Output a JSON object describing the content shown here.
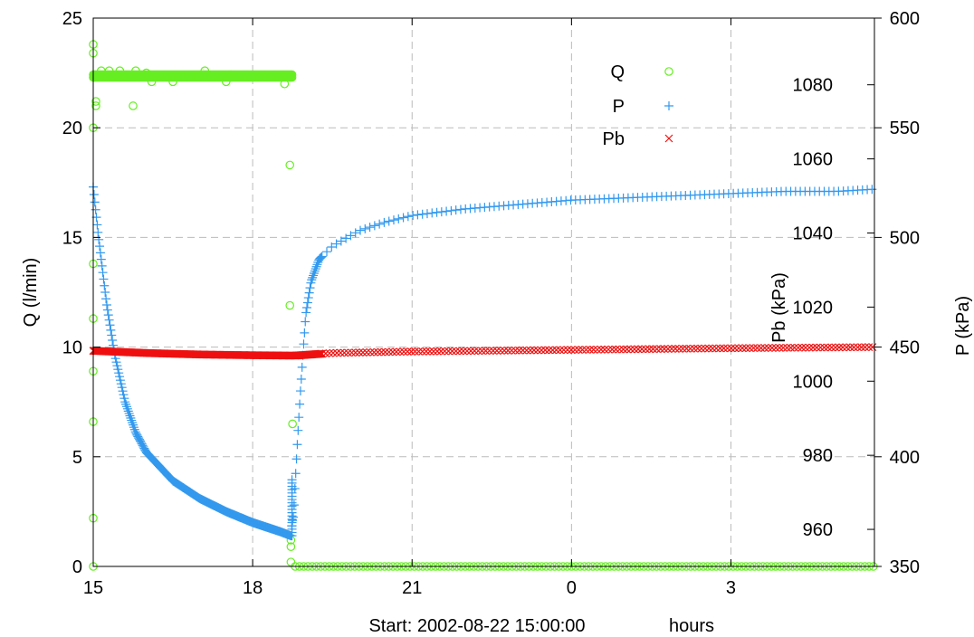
{
  "chart_data": {
    "type": "scatter",
    "xlabel": "hours",
    "x_note": "Start: 2002-08-22 15:00:00",
    "x_tick_labels": [
      "15",
      "18",
      "21",
      "0",
      "3"
    ],
    "x_tick_hours": [
      0,
      3,
      6,
      9,
      12
    ],
    "xlim_hours": [
      0,
      14.7
    ],
    "axes": {
      "left": {
        "label": "Q  (l/min)",
        "ylim": [
          0,
          25
        ],
        "ticks": [
          0,
          5,
          10,
          15,
          20,
          25
        ]
      },
      "right1": {
        "label": "Pb (kPa)",
        "ylim": [
          950,
          1098
        ],
        "ticks": [
          960,
          980,
          1000,
          1020,
          1040,
          1060,
          1080
        ]
      },
      "right2": {
        "label": "P  (kPa)",
        "ylim": [
          350,
          600
        ],
        "ticks": [
          350,
          400,
          450,
          500,
          550,
          600
        ]
      }
    },
    "grid": true,
    "legend_position": "top-right",
    "series": [
      {
        "name": "Q",
        "axis": "left",
        "marker": "circle",
        "color": "#66ee22",
        "segments": [
          {
            "from": 0.0,
            "to": 3.75,
            "value": 22.3
          },
          {
            "from": 3.8,
            "to": 14.7,
            "value": 0.0
          }
        ],
        "outliers": [
          [
            0.0,
            23.8
          ],
          [
            0.0,
            23.4
          ],
          [
            0.0,
            20.0
          ],
          [
            0.0,
            13.8
          ],
          [
            0.0,
            11.3
          ],
          [
            0.0,
            8.9
          ],
          [
            0.0,
            6.6
          ],
          [
            0.0,
            2.2
          ],
          [
            0.0,
            0.0
          ],
          [
            0.05,
            21.2
          ],
          [
            0.05,
            21.0
          ],
          [
            0.15,
            22.6
          ],
          [
            0.3,
            22.6
          ],
          [
            0.5,
            22.6
          ],
          [
            0.8,
            22.6
          ],
          [
            0.75,
            21.0
          ],
          [
            1.0,
            22.5
          ],
          [
            1.5,
            22.1
          ],
          [
            1.1,
            22.1
          ],
          [
            2.1,
            22.6
          ],
          [
            2.5,
            22.1
          ],
          [
            3.6,
            22.0
          ],
          [
            3.7,
            18.3
          ],
          [
            3.7,
            11.9
          ],
          [
            3.75,
            6.5
          ],
          [
            3.72,
            1.2
          ],
          [
            3.72,
            0.9
          ],
          [
            3.72,
            0.2
          ]
        ]
      },
      {
        "name": "P",
        "axis": "right2",
        "marker": "plus",
        "color": "#3399ee",
        "points": [
          [
            0.0,
            523
          ],
          [
            0.1,
            500
          ],
          [
            0.25,
            470
          ],
          [
            0.4,
            447
          ],
          [
            0.6,
            425
          ],
          [
            0.8,
            411
          ],
          [
            1.0,
            402
          ],
          [
            1.5,
            389
          ],
          [
            2.0,
            381
          ],
          [
            2.5,
            375
          ],
          [
            3.0,
            370
          ],
          [
            3.5,
            366
          ],
          [
            3.72,
            364
          ],
          [
            3.74,
            370
          ],
          [
            3.77,
            373
          ],
          [
            3.8,
            388
          ],
          [
            3.85,
            410
          ],
          [
            3.9,
            430
          ],
          [
            3.95,
            448
          ],
          [
            4.0,
            465
          ],
          [
            4.1,
            480
          ],
          [
            4.25,
            490
          ],
          [
            4.5,
            496
          ],
          [
            5.0,
            503
          ],
          [
            5.5,
            507
          ],
          [
            6.0,
            510
          ],
          [
            7.0,
            513
          ],
          [
            8.0,
            515
          ],
          [
            9.0,
            517
          ],
          [
            10.0,
            518
          ],
          [
            11.0,
            519
          ],
          [
            12.0,
            520
          ],
          [
            13.0,
            521
          ],
          [
            14.0,
            521
          ],
          [
            14.7,
            522
          ]
        ]
      },
      {
        "name": "Pb",
        "axis": "right1",
        "marker": "x",
        "color": "#ee1111",
        "points": [
          [
            0.0,
            1008.2
          ],
          [
            1.0,
            1007.6
          ],
          [
            2.0,
            1007.2
          ],
          [
            3.0,
            1007.0
          ],
          [
            3.8,
            1006.9
          ],
          [
            4.5,
            1007.6
          ],
          [
            6.0,
            1008.0
          ],
          [
            8.0,
            1008.3
          ],
          [
            10.0,
            1008.6
          ],
          [
            12.0,
            1008.9
          ],
          [
            14.7,
            1009.2
          ]
        ]
      }
    ],
    "colors": {
      "Q": "#66ee22",
      "P": "#3399ee",
      "Pb": "#ee1111"
    }
  }
}
